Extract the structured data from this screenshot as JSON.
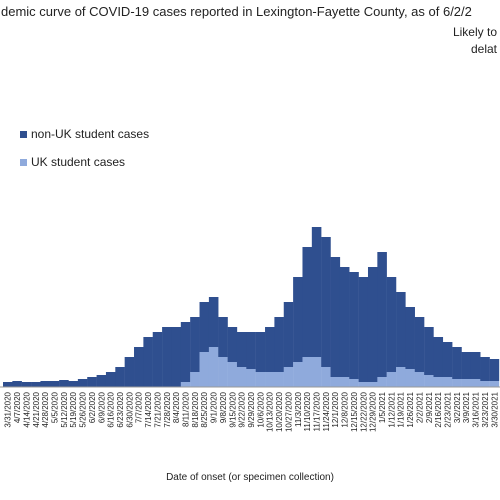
{
  "chart_data": {
    "type": "stacked-bar",
    "title": "demic curve of COVID-19 cases reported in Lexington-Fayette County, as of 6/2/2",
    "annotation": [
      "Likely to",
      "delat"
    ],
    "x_label": "Date of onset (or specimen collection)",
    "categories": [
      "3/31/2020",
      "4/7/2020",
      "4/14/2020",
      "4/21/2020",
      "4/28/2020",
      "5/5/2020",
      "5/12/2020",
      "5/19/2020",
      "5/26/2020",
      "6/2/2020",
      "6/9/2020",
      "6/16/2020",
      "6/23/2020",
      "6/30/2020",
      "7/7/2020",
      "7/14/2020",
      "7/21/2020",
      "7/28/2020",
      "8/4/2020",
      "8/11/2020",
      "8/18/2020",
      "8/25/2020",
      "9/1/2020",
      "9/8/2020",
      "9/15/2020",
      "9/22/2020",
      "9/29/2020",
      "10/6/2020",
      "10/13/2020",
      "10/20/2020",
      "10/27/2020",
      "11/3/2020",
      "11/10/2020",
      "11/17/2020",
      "11/24/2020",
      "12/1/2020",
      "12/8/2020",
      "12/15/2020",
      "12/22/2020",
      "12/29/2020",
      "1/5/2021",
      "1/12/2021",
      "1/19/2021",
      "1/26/2021",
      "2/2/2021",
      "2/9/2021",
      "2/16/2021",
      "2/23/2021",
      "3/2/2021",
      "3/9/2021",
      "3/16/2021",
      "3/23/2021",
      "3/30/2021"
    ],
    "series": [
      {
        "name": "UK student cases",
        "color": "#8faadc",
        "values": [
          0,
          0,
          0,
          0,
          0,
          0,
          0,
          0,
          0,
          0,
          0,
          0,
          0,
          0,
          0,
          0,
          0,
          0,
          0,
          5,
          15,
          35,
          40,
          30,
          25,
          20,
          18,
          15,
          15,
          15,
          20,
          25,
          30,
          30,
          20,
          10,
          10,
          8,
          5,
          5,
          10,
          15,
          20,
          18,
          15,
          12,
          10,
          10,
          8,
          8,
          8,
          6,
          6
        ]
      },
      {
        "name": "non-UK student cases",
        "color": "#2f4f8f",
        "values": [
          5,
          6,
          5,
          5,
          6,
          6,
          7,
          6,
          8,
          10,
          12,
          15,
          20,
          30,
          40,
          50,
          55,
          60,
          60,
          60,
          55,
          50,
          50,
          40,
          35,
          35,
          37,
          40,
          45,
          55,
          65,
          85,
          110,
          130,
          130,
          120,
          110,
          107,
          105,
          115,
          125,
          95,
          75,
          62,
          55,
          48,
          40,
          35,
          32,
          27,
          27,
          24,
          22
        ]
      }
    ],
    "ylim": [
      0,
      300
    ]
  }
}
